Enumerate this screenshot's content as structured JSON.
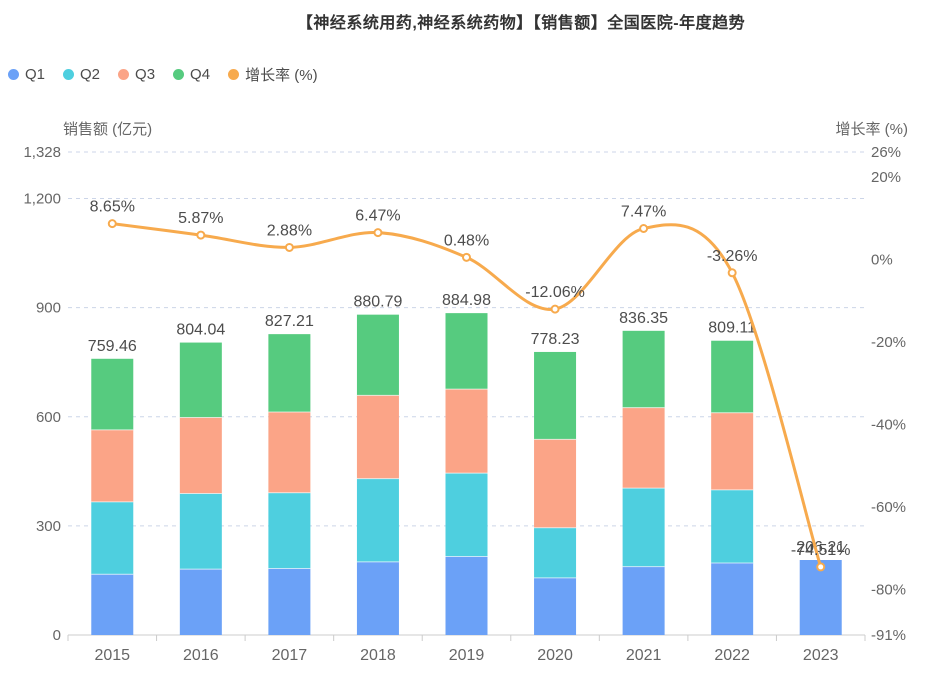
{
  "chart_data": {
    "type": "bar",
    "subtype": "stacked-bars-with-growth-line",
    "title": "【神经系统用药,神经系统药物】【销售额】全国医院-年度趋势",
    "categories": [
      "2015",
      "2016",
      "2017",
      "2018",
      "2019",
      "2020",
      "2021",
      "2022",
      "2023"
    ],
    "series": [
      {
        "name": "Q1",
        "type": "bar",
        "stack": true,
        "color": "#6ba1f7",
        "values": [
          167,
          181,
          183,
          201,
          216,
          157,
          188,
          198,
          206.21
        ]
      },
      {
        "name": "Q2",
        "type": "bar",
        "stack": true,
        "color": "#4ecfdf",
        "values": [
          199,
          208,
          208,
          229,
          229,
          138,
          216,
          201,
          0
        ]
      },
      {
        "name": "Q3",
        "type": "bar",
        "stack": true,
        "color": "#fba487",
        "values": [
          198,
          209,
          222,
          229,
          231,
          243,
          221,
          212,
          0
        ]
      },
      {
        "name": "Q4",
        "type": "bar",
        "stack": true,
        "color": "#56cb7f",
        "values": [
          195.46,
          206.04,
          214.21,
          221.79,
          208.98,
          240.23,
          211.35,
          198.11,
          0
        ]
      },
      {
        "name": "增长率 (%)",
        "type": "line",
        "axis": "right",
        "color": "#f7aa4d",
        "values": [
          8.65,
          5.87,
          2.88,
          6.47,
          0.48,
          -12.06,
          7.47,
          -3.26,
          -74.51
        ]
      }
    ],
    "bar_total_labels": [
      759.46,
      804.04,
      827.21,
      880.79,
      884.98,
      778.23,
      836.35,
      809.11,
      206.21
    ],
    "growth_labels": [
      "8.65%",
      "5.87%",
      "2.88%",
      "6.47%",
      "0.48%",
      "-12.06%",
      "7.47%",
      "-3.26%",
      "-74.51%"
    ],
    "left_axis": {
      "name": "销售额 (亿元)",
      "min": 0,
      "max": 1328,
      "ticks": [
        0,
        300,
        600,
        900,
        1200,
        1328
      ],
      "tick_labels": [
        "0",
        "300",
        "600",
        "900",
        "1,200",
        "1,328"
      ]
    },
    "right_axis": {
      "name": "增长率 (%)",
      "min": -91,
      "max": 26,
      "ticks": [
        -91,
        -80,
        -60,
        -40,
        -20,
        0,
        20,
        26
      ],
      "tick_labels": [
        "-91%",
        "-80%",
        "-60%",
        "-40%",
        "-20%",
        "0%",
        "20%",
        "26%"
      ]
    },
    "legend_position": "top-left",
    "grid": "horizontal-dashed",
    "colors": {
      "grid_line": "#ccd5e8",
      "axis_line": "#cccccc",
      "tick_text": "#666666",
      "value_label_text": "#4d4d4d",
      "title_text": "#333333",
      "legend_text": "#4c4c4c",
      "background": "#ffffff"
    }
  }
}
